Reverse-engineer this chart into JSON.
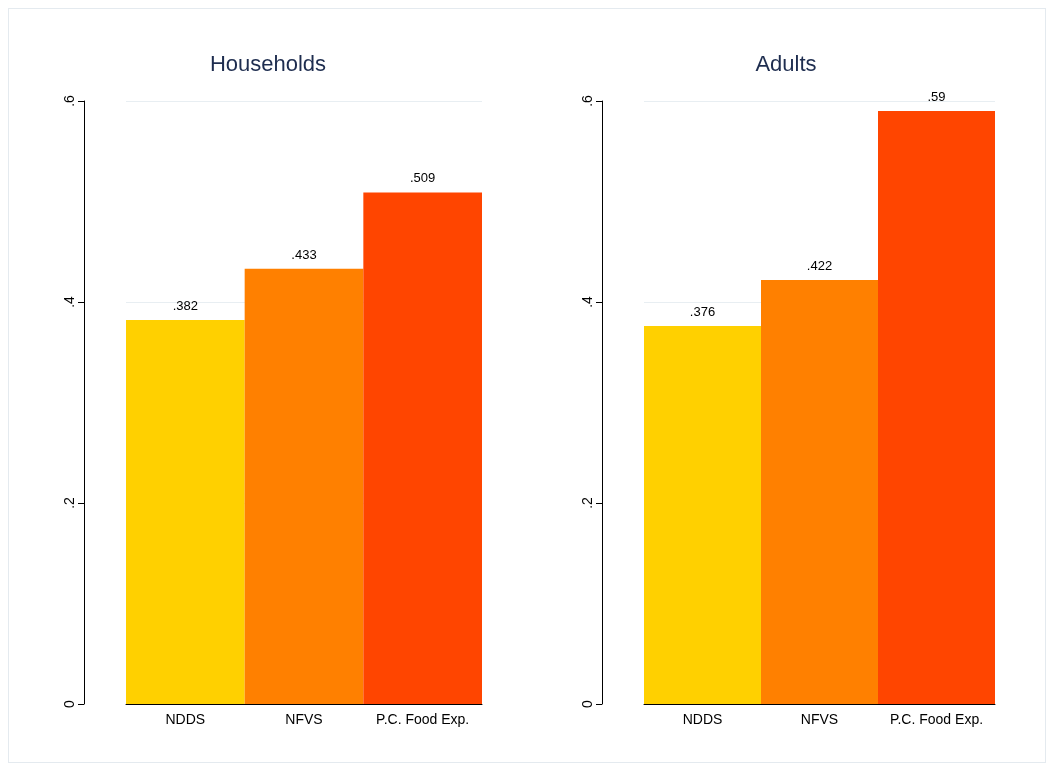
{
  "chart_data": [
    {
      "type": "bar",
      "title": "Households",
      "categories": [
        "NDDS",
        "NFVS",
        "P.C. Food Exp."
      ],
      "values": [
        0.382,
        0.433,
        0.509
      ],
      "colors": [
        "#ffd000",
        "#ff8000",
        "#ff4500"
      ],
      "value_labels": [
        ".382",
        ".433",
        ".509"
      ],
      "ylim": [
        0,
        0.6
      ],
      "yticks": [
        0,
        {
          "value": 0.2,
          "label": ".2"
        },
        {
          "value": 0.4,
          "label": ".4"
        },
        {
          "value": 0.6,
          "label": ".6"
        }
      ],
      "grid": "y"
    },
    {
      "type": "bar",
      "title": "Adults",
      "categories": [
        "NDDS",
        "NFVS",
        "P.C. Food Exp."
      ],
      "values": [
        0.376,
        0.422,
        0.59
      ],
      "colors": [
        "#ffd000",
        "#ff8000",
        "#ff4500"
      ],
      "value_labels": [
        ".376",
        ".422",
        ".59"
      ],
      "ylim": [
        0,
        0.6
      ],
      "yticks": [
        0,
        {
          "value": 0.2,
          "label": ".2"
        },
        {
          "value": 0.4,
          "label": ".4"
        },
        {
          "value": 0.6,
          "label": ".6"
        }
      ],
      "grid": "y"
    }
  ]
}
